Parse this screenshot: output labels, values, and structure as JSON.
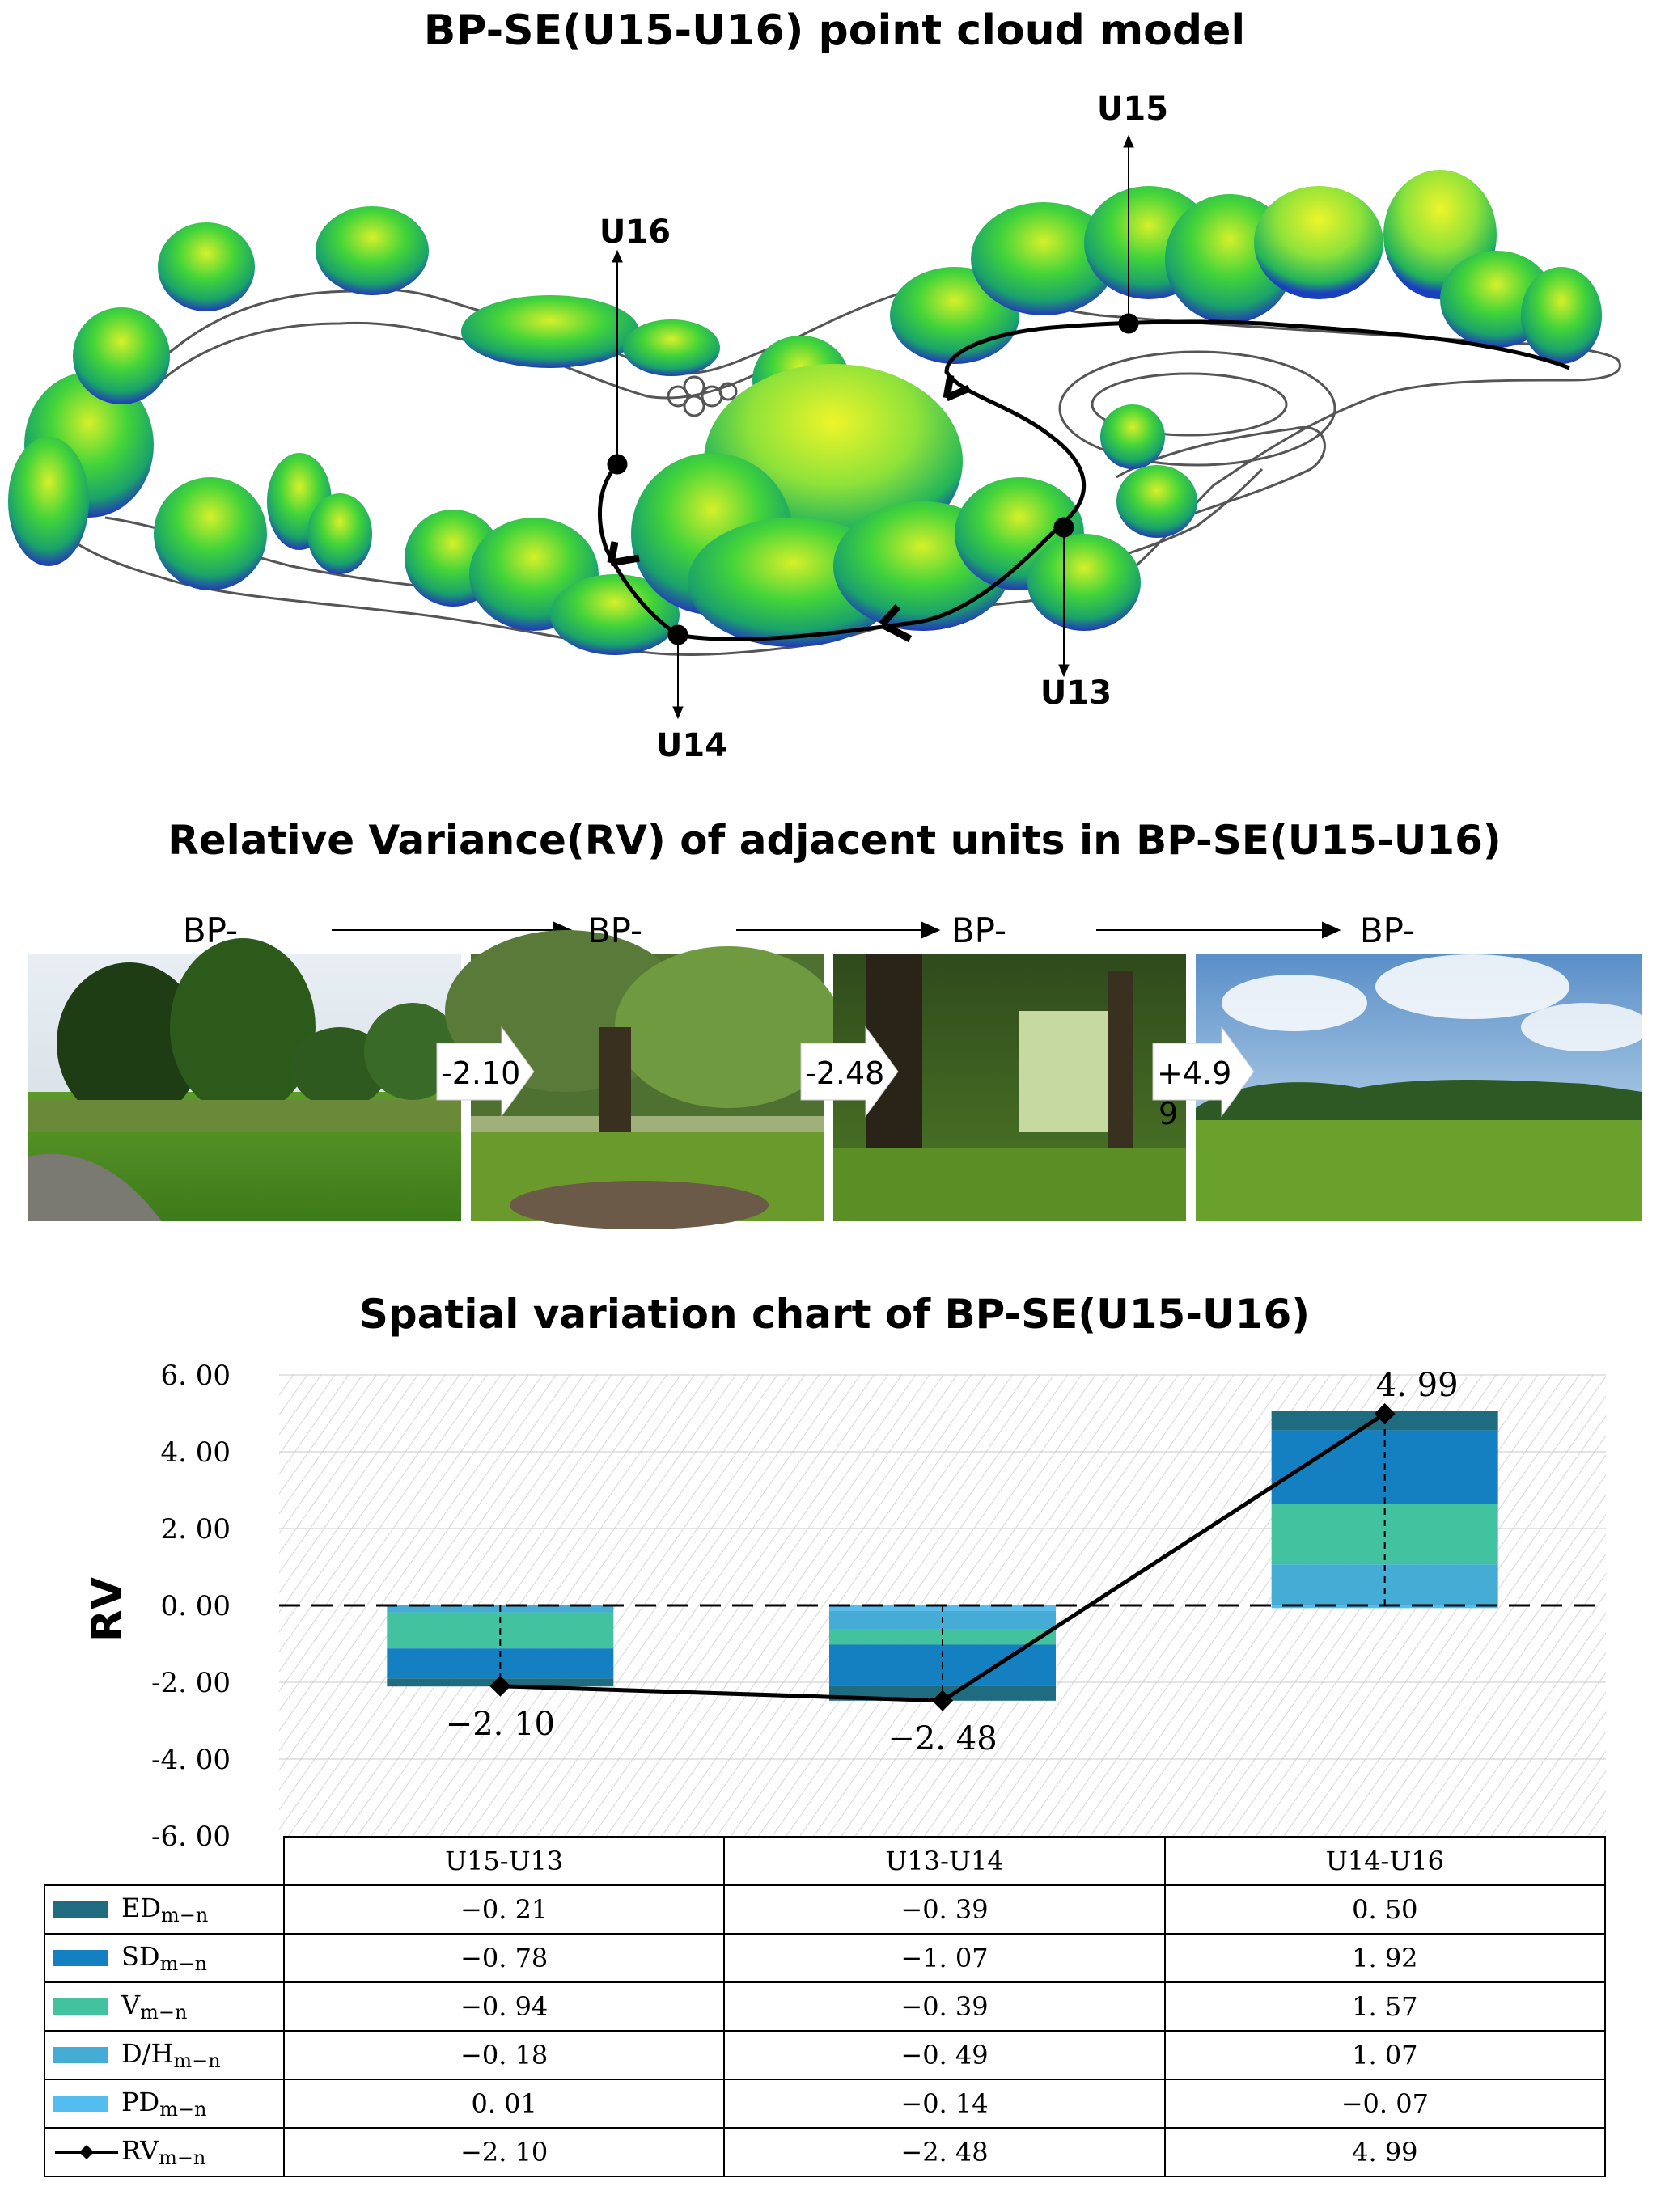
{
  "panel1": {
    "title": "BP-SE(U15-U16) point cloud model",
    "points": [
      "U15",
      "U16",
      "U13",
      "U14"
    ]
  },
  "panel2": {
    "title": "Relative Variance(RV) of adjacent units in BP-SE(U15-U16)",
    "photo_labels": [
      "BP-",
      "BP-",
      "BP-",
      "BP-"
    ],
    "arrow_values": [
      "-2.10",
      "-2.48",
      "+4.9",
      "9"
    ]
  },
  "panel3": {
    "title": "Spatial variation chart of BP-SE(U15-U16)",
    "y_label": "RV",
    "table_rows": [
      {
        "key": "ED",
        "sub": "m−n",
        "values": [
          "-0.21",
          "-0.39",
          "0.50"
        ]
      },
      {
        "key": "SD",
        "sub": "m−n",
        "values": [
          "-0.78",
          "-1.07",
          "1.92"
        ]
      },
      {
        "key": "V",
        "sub": "m−n",
        "values": [
          "-0.94",
          "-0.39",
          "1.57"
        ]
      },
      {
        "key": "D/H",
        "sub": "m−n",
        "values": [
          "-0.18",
          "-0.49",
          "1.07"
        ]
      },
      {
        "key": "PD",
        "sub": "m−n",
        "values": [
          "0.01",
          "-0.14",
          "-0.07"
        ]
      },
      {
        "key": "RV",
        "sub": "m−n",
        "values": [
          "-2.10",
          "-2.48",
          "4.99"
        ]
      }
    ]
  },
  "chart_data": {
    "type": "bar",
    "title": "Spatial variation chart of BP-SE(U15-U16)",
    "ylabel": "RV",
    "ylim": [
      -6,
      6
    ],
    "yticks": [
      "6.00",
      "4.00",
      "2.00",
      "0.00",
      "-2.00",
      "-4.00",
      "-6.00"
    ],
    "categories": [
      "U15-U13",
      "U13-U14",
      "U14-U16"
    ],
    "stacked": true,
    "series": [
      {
        "name": "ED",
        "color": "#1f6b7f",
        "values": [
          -0.21,
          -0.39,
          0.5
        ]
      },
      {
        "name": "SD",
        "color": "#1480c2",
        "values": [
          -0.78,
          -1.07,
          1.92
        ]
      },
      {
        "name": "V",
        "color": "#43c2a0",
        "values": [
          -0.94,
          -0.39,
          1.57
        ]
      },
      {
        "name": "D/H",
        "color": "#45acd6",
        "values": [
          -0.18,
          -0.49,
          1.07
        ]
      },
      {
        "name": "PD",
        "color": "#54bdf0",
        "values": [
          0.01,
          -0.14,
          -0.07
        ]
      }
    ],
    "line": {
      "name": "RV",
      "color": "#000000",
      "values": [
        -2.1,
        -2.48,
        4.99
      ]
    },
    "data_labels": [
      "-2.10",
      "-2.48",
      "4.99"
    ]
  }
}
